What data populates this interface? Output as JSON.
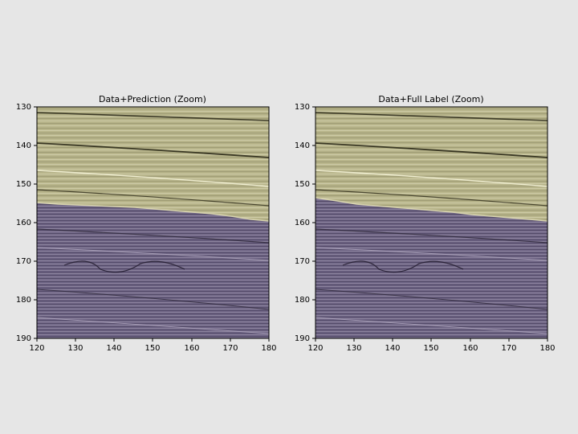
{
  "panels": [
    {
      "title": "Data+Prediction (Zoom)",
      "x_ticks": [
        "120",
        "130",
        "140",
        "150",
        "160",
        "170",
        "180"
      ],
      "y_ticks": [
        "130",
        "140",
        "150",
        "160",
        "170",
        "180",
        "190"
      ],
      "x_range": [
        120,
        180
      ],
      "y_range": [
        130,
        190
      ],
      "boundary": [
        [
          120,
          154.3
        ],
        [
          130,
          155.3
        ],
        [
          140,
          156.2
        ],
        [
          150,
          157.0
        ],
        [
          160,
          158.0
        ],
        [
          170,
          159.0
        ],
        [
          180,
          159.5
        ]
      ],
      "upper_region_color": "#b7b48a",
      "lower_region_color": "#6e6484"
    },
    {
      "title": "Data+Full Label (Zoom)",
      "x_ticks": [
        "120",
        "130",
        "140",
        "150",
        "160",
        "170",
        "180"
      ],
      "y_ticks": [
        "130",
        "140",
        "150",
        "160",
        "170",
        "180",
        "190"
      ],
      "x_range": [
        120,
        180
      ],
      "y_range": [
        130,
        190
      ],
      "boundary": [
        [
          120,
          153.3
        ],
        [
          130,
          154.8
        ],
        [
          140,
          155.9
        ],
        [
          150,
          156.8
        ],
        [
          160,
          158.0
        ],
        [
          170,
          159.3
        ],
        [
          180,
          159.6
        ]
      ],
      "upper_region_color": "#b7b48a",
      "lower_region_color": "#6e6484"
    }
  ]
}
